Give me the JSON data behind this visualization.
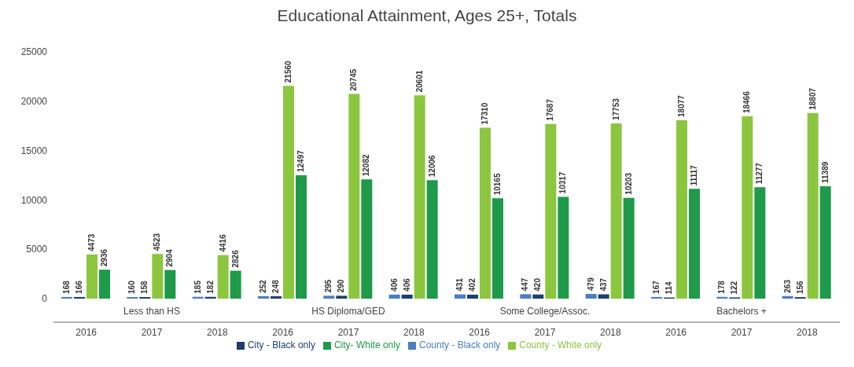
{
  "chart_data": {
    "type": "bar",
    "title": "Educational Attainment, Ages 25+, Totals",
    "categories": [
      "2016",
      "2017",
      "2018",
      "2016",
      "2017",
      "2018",
      "2016",
      "2017",
      "2018",
      "2016",
      "2017",
      "2018"
    ],
    "annotations": [
      "Less than HS",
      "HS Diploma/GED",
      "Some College/Assoc.",
      "Bachelors +"
    ],
    "series": [
      {
        "name": "County - Black only",
        "color": "#4a7fc1",
        "values": [
          168,
          160,
          185,
          252,
          295,
          406,
          431,
          447,
          479,
          167,
          178,
          263
        ]
      },
      {
        "name": "City - Black only",
        "color": "#1f3f6e",
        "values": [
          166,
          158,
          182,
          248,
          290,
          406,
          402,
          420,
          437,
          114,
          122,
          156
        ]
      },
      {
        "name": "County - White only",
        "color": "#8cc63f",
        "values": [
          4473,
          4523,
          4416,
          21560,
          20745,
          20601,
          17310,
          17687,
          17753,
          18077,
          18466,
          18807
        ]
      },
      {
        "name": "City- White only",
        "color": "#1e9a4a",
        "values": [
          2936,
          2904,
          2826,
          12497,
          12082,
          12006,
          10165,
          10317,
          10203,
          11117,
          11277,
          11389
        ]
      }
    ],
    "ylim": [
      0,
      25000
    ],
    "yticks": [
      0,
      5000,
      10000,
      15000,
      20000,
      25000
    ],
    "grid": false,
    "legend": "bottom",
    "data_labels": true
  }
}
